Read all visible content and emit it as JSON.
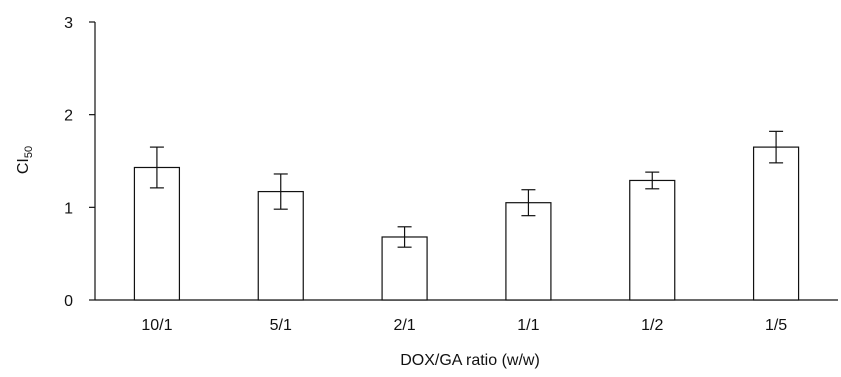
{
  "chart_data": {
    "type": "bar",
    "title": "",
    "xlabel": "DOX/GA ratio (w/w)",
    "ylabel": "CI",
    "ylabel_subscript": "50",
    "categories": [
      "10/1",
      "5/1",
      "2/1",
      "1/1",
      "1/2",
      "1/5"
    ],
    "values": [
      1.43,
      1.17,
      0.68,
      1.05,
      1.29,
      1.65
    ],
    "error": [
      0.22,
      0.19,
      0.11,
      0.14,
      0.09,
      0.17
    ],
    "ylim": [
      0,
      3
    ],
    "yticks": [
      "0",
      "1",
      "2",
      "3"
    ],
    "grid": false,
    "legend": "none",
    "colors": {
      "bar_fill": "#ffffff",
      "bar_stroke": "#111111",
      "axis": "#111111"
    }
  }
}
